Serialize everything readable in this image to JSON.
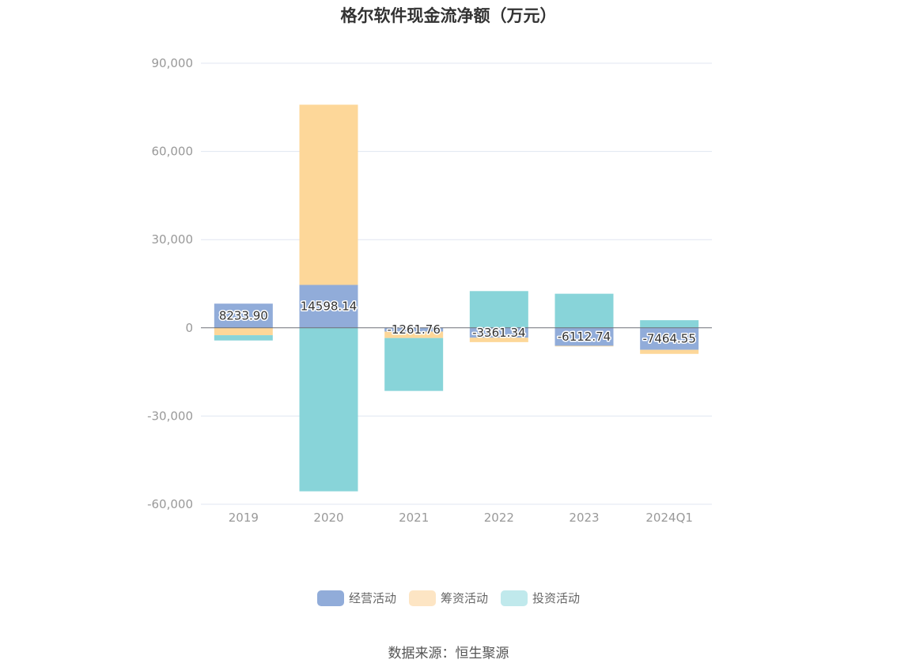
{
  "chart_data": {
    "type": "bar",
    "stacked": true,
    "title": "格尔软件现金流净额（万元）",
    "categories": [
      "2019",
      "2020",
      "2021",
      "2022",
      "2023",
      "2024Q1"
    ],
    "series": [
      {
        "name": "经营活动",
        "color": "#91acd9",
        "values": [
          8233.9,
          14598.14,
          -1261.76,
          -3361.34,
          -6112.74,
          -7464.55
        ]
      },
      {
        "name": "筹资活动",
        "color": "#fdd799",
        "values": [
          -2500,
          61300,
          -2200,
          -1500,
          -200,
          -1400
        ]
      },
      {
        "name": "投资活动",
        "color": "#88d4d9",
        "values": [
          -1800,
          -55600,
          -18000,
          12500,
          11600,
          2600
        ]
      }
    ],
    "data_labels": [
      "8233.90",
      "14598.14",
      "-1261.76",
      "-3361.34",
      "-6112.74",
      "-7464.55"
    ],
    "ylim": [
      -60000,
      90000
    ],
    "yticks": [
      90000,
      60000,
      30000,
      0,
      -30000,
      -60000
    ],
    "ytick_labels": [
      "90,000",
      "60,000",
      "30,000",
      "0",
      "-30,000",
      "-60,000"
    ],
    "xlabel": "",
    "ylabel": "",
    "legend_position": "bottom",
    "grid": true
  },
  "source": "数据来源：恒生聚源",
  "colors": {
    "grid": "#e0e6f1",
    "axis": "#6e7079"
  }
}
